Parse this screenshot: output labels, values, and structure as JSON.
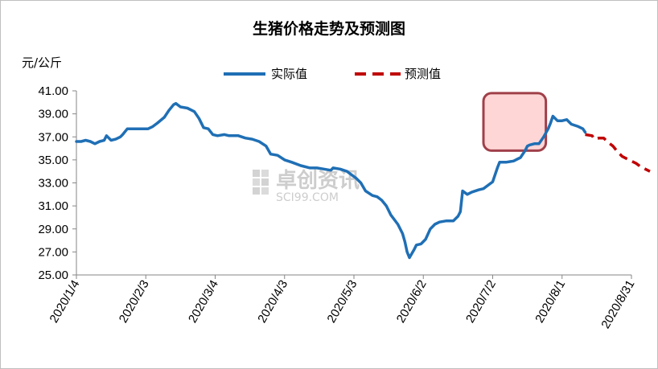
{
  "chart_data": {
    "type": "line",
    "title": "生猪价格走势及预测图",
    "ylabel": "元/公斤",
    "ylim": [
      25,
      41
    ],
    "yticks": [
      "25.00",
      "27.00",
      "29.00",
      "31.00",
      "33.00",
      "35.00",
      "37.00",
      "39.00",
      "41.00"
    ],
    "x_tick_labels": [
      "2020/1/4",
      "2020/2/3",
      "2020/3/4",
      "2020/4/3",
      "2020/5/3",
      "2020/6/2",
      "2020/7/2",
      "2020/8/1",
      "2020/8/31"
    ],
    "grid": false,
    "legend_position": "top",
    "watermark": {
      "cn": "卓创资讯",
      "en": "SCI99.COM"
    },
    "highlight_box": {
      "x_start": "2020/6/28",
      "x_end": "2020/7/25",
      "y_start": 35.8,
      "y_end": 40.8,
      "color": "#ffd6d6",
      "border": "#a0404a"
    },
    "series": [
      {
        "name": "实际值",
        "color": "#1f6fb5",
        "style": "solid",
        "points": [
          [
            "2020/1/4",
            36.6
          ],
          [
            "2020/1/6",
            36.6
          ],
          [
            "2020/1/8",
            36.7
          ],
          [
            "2020/1/10",
            36.6
          ],
          [
            "2020/1/12",
            36.4
          ],
          [
            "2020/1/14",
            36.6
          ],
          [
            "2020/1/16",
            36.7
          ],
          [
            "2020/1/17",
            37.1
          ],
          [
            "2020/1/19",
            36.7
          ],
          [
            "2020/1/21",
            36.8
          ],
          [
            "2020/1/23",
            37.0
          ],
          [
            "2020/1/24",
            37.2
          ],
          [
            "2020/1/26",
            37.7
          ],
          [
            "2020/1/28",
            37.7
          ],
          [
            "2020/2/1",
            37.7
          ],
          [
            "2020/2/4",
            37.7
          ],
          [
            "2020/2/6",
            37.9
          ],
          [
            "2020/2/8",
            38.2
          ],
          [
            "2020/2/11",
            38.7
          ],
          [
            "2020/2/13",
            39.3
          ],
          [
            "2020/2/15",
            39.8
          ],
          [
            "2020/2/16",
            39.9
          ],
          [
            "2020/2/18",
            39.6
          ],
          [
            "2020/2/21",
            39.5
          ],
          [
            "2020/2/24",
            39.2
          ],
          [
            "2020/2/26",
            38.6
          ],
          [
            "2020/2/28",
            37.8
          ],
          [
            "2020/3/1",
            37.7
          ],
          [
            "2020/3/3",
            37.2
          ],
          [
            "2020/3/5",
            37.1
          ],
          [
            "2020/3/8",
            37.2
          ],
          [
            "2020/3/10",
            37.1
          ],
          [
            "2020/3/14",
            37.1
          ],
          [
            "2020/3/17",
            36.9
          ],
          [
            "2020/3/20",
            36.8
          ],
          [
            "2020/3/23",
            36.6
          ],
          [
            "2020/3/26",
            36.2
          ],
          [
            "2020/3/28",
            35.5
          ],
          [
            "2020/3/31",
            35.4
          ],
          [
            "2020/4/3",
            35.0
          ],
          [
            "2020/4/6",
            34.8
          ],
          [
            "2020/4/10",
            34.5
          ],
          [
            "2020/4/14",
            34.3
          ],
          [
            "2020/4/17",
            34.3
          ],
          [
            "2020/4/20",
            34.2
          ],
          [
            "2020/4/23",
            34.1
          ],
          [
            "2020/4/24",
            34.3
          ],
          [
            "2020/4/27",
            34.2
          ],
          [
            "2020/4/30",
            34.0
          ],
          [
            "2020/5/2",
            33.7
          ],
          [
            "2020/5/4",
            33.4
          ],
          [
            "2020/5/6",
            33.0
          ],
          [
            "2020/5/8",
            32.3
          ],
          [
            "2020/5/11",
            31.9
          ],
          [
            "2020/5/13",
            31.8
          ],
          [
            "2020/5/15",
            31.5
          ],
          [
            "2020/5/17",
            31.0
          ],
          [
            "2020/5/19",
            30.2
          ],
          [
            "2020/5/22",
            29.4
          ],
          [
            "2020/5/24",
            28.6
          ],
          [
            "2020/5/25",
            27.9
          ],
          [
            "2020/5/26",
            27.0
          ],
          [
            "2020/5/27",
            26.5
          ],
          [
            "2020/5/29",
            27.2
          ],
          [
            "2020/5/30",
            27.6
          ],
          [
            "2020/6/1",
            27.7
          ],
          [
            "2020/6/3",
            28.1
          ],
          [
            "2020/6/5",
            29.0
          ],
          [
            "2020/6/7",
            29.4
          ],
          [
            "2020/6/9",
            29.6
          ],
          [
            "2020/6/12",
            29.7
          ],
          [
            "2020/6/15",
            29.7
          ],
          [
            "2020/6/17",
            30.1
          ],
          [
            "2020/6/18",
            30.5
          ],
          [
            "2020/6/19",
            32.3
          ],
          [
            "2020/6/21",
            32.0
          ],
          [
            "2020/6/23",
            32.2
          ],
          [
            "2020/6/26",
            32.4
          ],
          [
            "2020/6/28",
            32.5
          ],
          [
            "2020/6/30",
            32.8
          ],
          [
            "2020/7/2",
            33.1
          ],
          [
            "2020/7/4",
            34.3
          ],
          [
            "2020/7/5",
            34.8
          ],
          [
            "2020/7/8",
            34.8
          ],
          [
            "2020/7/11",
            34.9
          ],
          [
            "2020/7/14",
            35.2
          ],
          [
            "2020/7/16",
            35.8
          ],
          [
            "2020/7/17",
            36.2
          ],
          [
            "2020/7/18",
            36.3
          ],
          [
            "2020/7/20",
            36.4
          ],
          [
            "2020/7/22",
            36.4
          ],
          [
            "2020/7/24",
            37.0
          ],
          [
            "2020/7/26",
            37.7
          ],
          [
            "2020/7/27",
            38.2
          ],
          [
            "2020/7/28",
            38.8
          ],
          [
            "2020/7/30",
            38.4
          ],
          [
            "2020/8/1",
            38.4
          ],
          [
            "2020/8/3",
            38.5
          ],
          [
            "2020/8/5",
            38.1
          ],
          [
            "2020/8/8",
            37.9
          ],
          [
            "2020/8/10",
            37.7
          ],
          [
            "2020/8/11",
            37.4
          ]
        ]
      },
      {
        "name": "预测值",
        "color": "#c00000",
        "style": "dashed",
        "points": [
          [
            "2020/8/11",
            37.2
          ],
          [
            "2020/8/14",
            37.1
          ],
          [
            "2020/8/15",
            36.8
          ],
          [
            "2020/8/17",
            36.9
          ],
          [
            "2020/8/19",
            36.9
          ],
          [
            "2020/8/21",
            36.5
          ],
          [
            "2020/8/23",
            36.2
          ],
          [
            "2020/8/25",
            35.7
          ],
          [
            "2020/8/27",
            35.3
          ],
          [
            "2020/8/30",
            35.0
          ],
          [
            "2020/9/2",
            34.7
          ],
          [
            "2020/9/4",
            34.4
          ],
          [
            "2020/9/6",
            34.2
          ],
          [
            "2020/9/8",
            34.0
          ]
        ]
      }
    ]
  }
}
